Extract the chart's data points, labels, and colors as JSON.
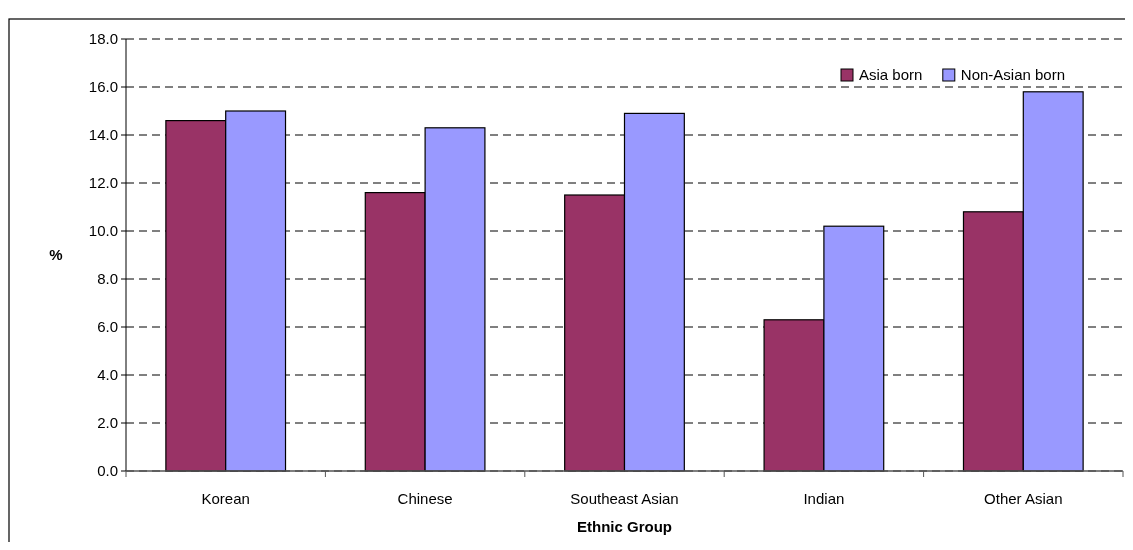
{
  "chart_data": {
    "type": "bar",
    "xlabel": "Ethnic Group",
    "ylabel": "%",
    "categories": [
      "Korean",
      "Chinese",
      "Southeast Asian",
      "Indian",
      "Other Asian"
    ],
    "series": [
      {
        "name": "Asia born",
        "color": "#993366",
        "values": [
          14.6,
          11.6,
          11.5,
          6.3,
          10.8
        ]
      },
      {
        "name": "Non-Asian born",
        "color": "#9999ff",
        "values": [
          15.0,
          14.3,
          14.9,
          10.2,
          15.8
        ]
      }
    ],
    "ylim": [
      0,
      18
    ],
    "yticks": [
      {
        "value": 0,
        "label": "0.0"
      },
      {
        "value": 2,
        "label": "2.0"
      },
      {
        "value": 4,
        "label": "4.0"
      },
      {
        "value": 6,
        "label": "6.0"
      },
      {
        "value": 8,
        "label": "8.0"
      },
      {
        "value": 10,
        "label": "10.0"
      },
      {
        "value": 12,
        "label": "12.0"
      },
      {
        "value": 14,
        "label": "14.0"
      },
      {
        "value": 16,
        "label": "16.0"
      },
      {
        "value": 18,
        "label": "18.0"
      }
    ],
    "grid": "y",
    "legend": "top right"
  }
}
